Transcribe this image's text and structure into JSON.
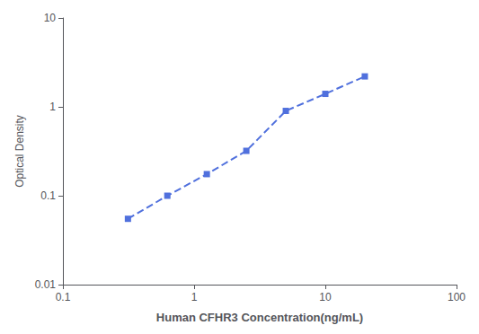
{
  "chart_data": {
    "type": "line",
    "x": [
      0.313,
      0.625,
      1.25,
      2.5,
      5,
      10,
      20
    ],
    "values": [
      0.055,
      0.1,
      0.175,
      0.32,
      0.9,
      1.4,
      2.2
    ],
    "xlabel": "Human CFHR3 Concentration(ng/mL)",
    "ylabel": "Optical Density",
    "xlim": [
      0.1,
      100
    ],
    "ylim": [
      0.01,
      10
    ],
    "xticks": [
      0.1,
      1,
      10,
      100
    ],
    "yticks": [
      0.01,
      0.1,
      1,
      10
    ],
    "log": true,
    "grid": false,
    "marker": "square",
    "line_style": "dashed"
  }
}
